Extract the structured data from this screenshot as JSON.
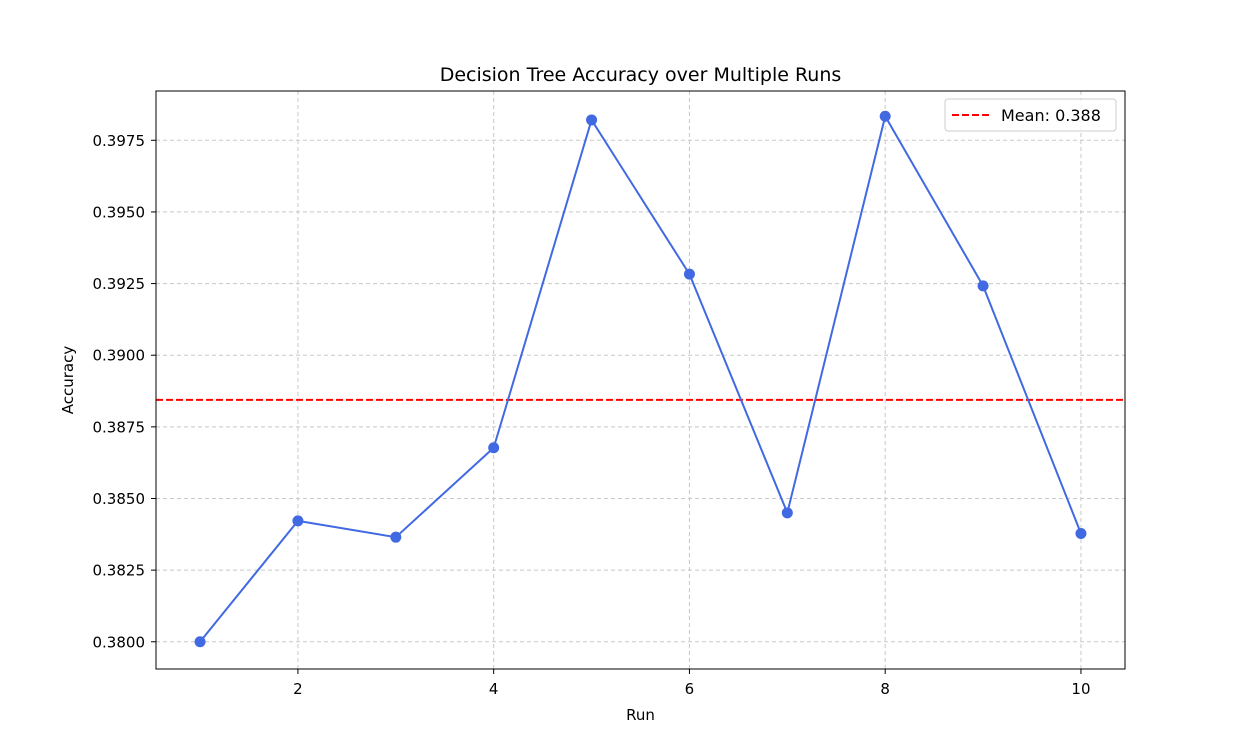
{
  "chart_data": {
    "type": "line",
    "title": "Decision Tree Accuracy over Multiple Runs",
    "xlabel": "Run",
    "ylabel": "Accuracy",
    "x": [
      1,
      2,
      3,
      4,
      5,
      6,
      7,
      8,
      9,
      10
    ],
    "xticks": [
      2,
      4,
      6,
      8,
      10
    ],
    "xlim": [
      0.55,
      10.45
    ],
    "yticks": [
      0.38,
      0.3825,
      0.385,
      0.3875,
      0.39,
      0.3925,
      0.395,
      0.3975
    ],
    "ytick_labels": [
      "0.3800",
      "0.3825",
      "0.3850",
      "0.3875",
      "0.3900",
      "0.3925",
      "0.3950",
      "0.3975"
    ],
    "ylim": [
      0.37905,
      0.39922
    ],
    "grid": true,
    "series": [
      {
        "values": [
          0.38,
          0.38422,
          0.38365,
          0.38677,
          0.39821,
          0.39283,
          0.3845,
          0.39834,
          0.39242,
          0.38378
        ],
        "color": "#4169e1",
        "marker": "circle"
      }
    ],
    "reference_lines": [
      {
        "y": 0.38844,
        "label": "Mean: 0.388",
        "color": "#ff0000",
        "style": "dashed"
      }
    ],
    "legend_position": "top-right"
  }
}
